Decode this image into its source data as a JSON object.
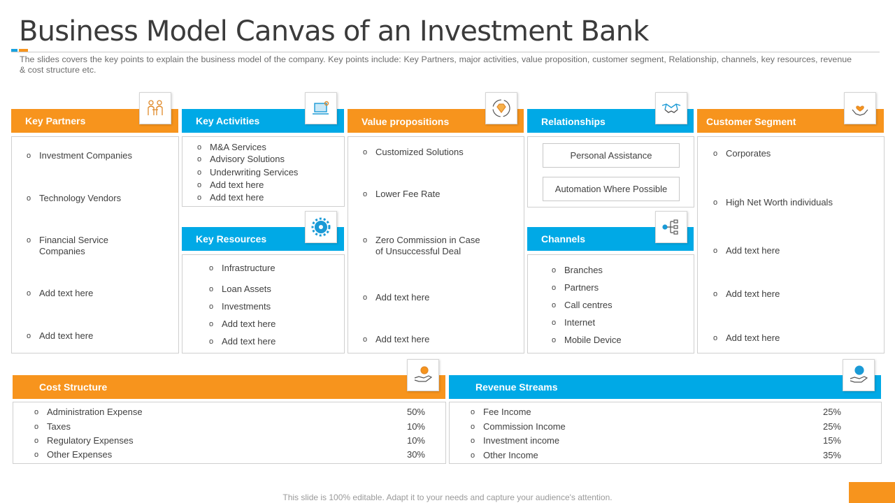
{
  "title": "Business Model Canvas of an Investment Bank",
  "subtitle": "The slides covers the key points to explain the business model of the company. Key points include: Key Partners, major activities, value  proposition, customer segment, Relationship, channels, key resources, revenue  & cost structure etc.",
  "key_partners": {
    "label": "Key Partners",
    "icon": "partners-icon",
    "items": [
      "Investment  Companies",
      "Technology  Vendors",
      "Financial Service\nCompanies",
      "Add text here",
      "Add text here"
    ]
  },
  "key_activities": {
    "label": "Key Activities",
    "icon": "laptop-icon",
    "items": [
      "M&A Services",
      "Advisory  Solutions",
      "Underwriting  Services",
      "Add text here",
      "Add text here"
    ]
  },
  "key_resources": {
    "label": "Key Resources",
    "icon": "gear-icon",
    "items": [
      "Infrastructure",
      "Loan Assets",
      "Investments",
      "Add text here",
      "Add text here"
    ]
  },
  "value_propositions": {
    "label": "Value propositions",
    "icon": "diamond-icon",
    "items": [
      "Customized Solutions",
      "Lower  Fee Rate",
      "Zero  Commission in Case\nof Unsuccessful Deal",
      "Add text here",
      "Add text here"
    ]
  },
  "relationships": {
    "label": "Relationships",
    "icon": "handshake-icon",
    "items": [
      "Personal Assistance",
      "Automation Where Possible"
    ]
  },
  "channels": {
    "label": "Channels",
    "icon": "network-icon",
    "items": [
      "Branches",
      "Partners",
      "Call centres",
      "Internet",
      "Mobile Device"
    ]
  },
  "customer_segment": {
    "label": "Customer Segment",
    "icon": "heart-hands-icon",
    "items": [
      "Corporates",
      "High Net Worth individuals",
      "Add text here",
      "Add text here",
      "Add text here"
    ]
  },
  "cost_structure": {
    "label": "Cost Structure",
    "icon": "coin-hand-icon",
    "items": [
      {
        "name": "Administration Expense",
        "pct": "50%"
      },
      {
        "name": "Taxes",
        "pct": "10%"
      },
      {
        "name": "Regulatory Expenses",
        "pct": "10%"
      },
      {
        "name": "Other Expenses",
        "pct": "30%"
      }
    ]
  },
  "revenue_streams": {
    "label": "Revenue Streams",
    "icon": "person-hand-icon",
    "items": [
      {
        "name": "Fee Income",
        "pct": "25%"
      },
      {
        "name": "Commission Income",
        "pct": "25%"
      },
      {
        "name": "Investment  income",
        "pct": "15%"
      },
      {
        "name": "Other Income",
        "pct": "35%"
      }
    ]
  },
  "footer": "This slide is 100% editable. Adapt it to your needs and capture your audience's attention.",
  "colors": {
    "orange": "#f7941d",
    "blue": "#00a9e6"
  }
}
